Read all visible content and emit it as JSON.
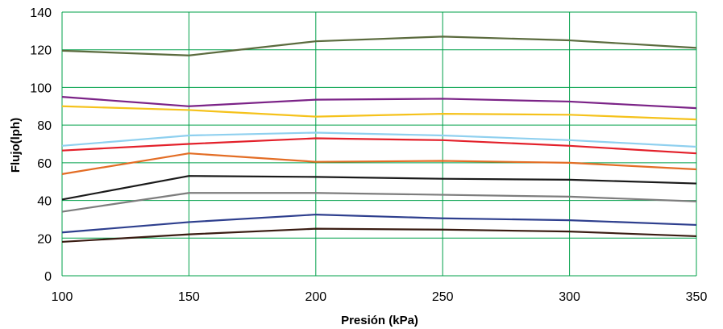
{
  "chart_data": {
    "type": "line",
    "title": "",
    "xlabel": "Presión (kPa)",
    "ylabel": "Flujo(lph)",
    "x": [
      100,
      150,
      200,
      250,
      300,
      350
    ],
    "xlim": [
      100,
      350
    ],
    "ylim": [
      0,
      140
    ],
    "xticks": [
      "100",
      "150",
      "200",
      "250",
      "300",
      "350"
    ],
    "yticks": [
      "0",
      "20",
      "40",
      "60",
      "80",
      "100",
      "120",
      "140"
    ],
    "grid": true,
    "grid_color": "#00a04a",
    "series": [
      {
        "color": "#5b6b3e",
        "values": [
          119.5,
          117,
          124.5,
          127,
          125,
          121
        ]
      },
      {
        "color": "#7b2387",
        "values": [
          95,
          90,
          93.5,
          94,
          92.5,
          89
        ]
      },
      {
        "color": "#f5c21b",
        "values": [
          90,
          88,
          84.5,
          86,
          85.5,
          83
        ]
      },
      {
        "color": "#8fd0ef",
        "values": [
          69,
          74.5,
          76,
          74.5,
          72,
          68.5
        ]
      },
      {
        "color": "#e3202a",
        "values": [
          66.5,
          70,
          73,
          72,
          69,
          65
        ]
      },
      {
        "color": "#e36d25",
        "values": [
          54,
          65,
          60.5,
          61,
          60,
          56.5
        ]
      },
      {
        "color": "#1a1a1a",
        "values": [
          40.5,
          53,
          52.5,
          51.5,
          51,
          49
        ]
      },
      {
        "color": "#7d7d7d",
        "values": [
          34,
          44,
          44,
          43,
          42,
          39.5
        ]
      },
      {
        "color": "#2e3f8e",
        "values": [
          23,
          28.5,
          32.5,
          30.5,
          29.5,
          27
        ]
      },
      {
        "color": "#3a1c12",
        "values": [
          18,
          22,
          25,
          24.5,
          23.5,
          21
        ]
      }
    ]
  }
}
